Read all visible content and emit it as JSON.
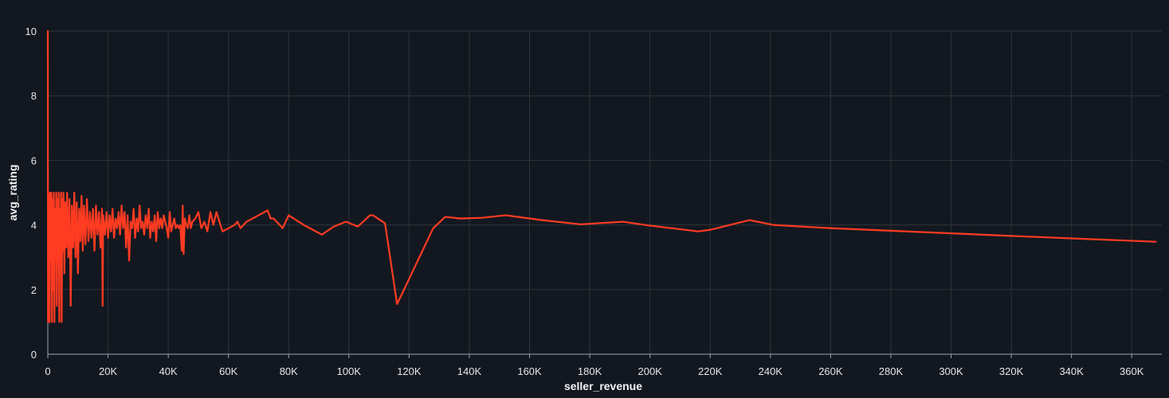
{
  "colors": {
    "background": "#131820",
    "grid": "#2e3338",
    "axis": "#9aa3ab",
    "text": "#e6e6e6",
    "series": "#ff3b22"
  },
  "chart_data": {
    "type": "line",
    "xlabel": "seller_revenue",
    "ylabel": "avg_rating",
    "xlim": [
      0,
      370000
    ],
    "ylim": [
      0,
      10
    ],
    "grid": true,
    "x_ticks": [
      0,
      20000,
      40000,
      60000,
      80000,
      100000,
      120000,
      140000,
      160000,
      180000,
      200000,
      220000,
      240000,
      260000,
      280000,
      300000,
      320000,
      340000,
      360000
    ],
    "x_tick_labels": [
      "0",
      "20K",
      "40K",
      "60K",
      "80K",
      "100K",
      "120K",
      "140K",
      "160K",
      "180K",
      "200K",
      "220K",
      "240K",
      "260K",
      "280K",
      "300K",
      "320K",
      "340K",
      "360K"
    ],
    "y_ticks": [
      0,
      2,
      4,
      6,
      8,
      10
    ],
    "y_tick_labels": [
      "0",
      "2",
      "4",
      "6",
      "8",
      "10"
    ],
    "series": [
      {
        "points": [
          [
            0,
            10
          ],
          [
            60,
            1
          ],
          [
            180,
            5
          ],
          [
            300,
            1
          ],
          [
            450,
            4.9
          ],
          [
            600,
            1
          ],
          [
            800,
            5
          ],
          [
            1000,
            2.9
          ],
          [
            1200,
            5
          ],
          [
            1400,
            1
          ],
          [
            1600,
            4.8
          ],
          [
            1800,
            2
          ],
          [
            2000,
            5
          ],
          [
            2200,
            1
          ],
          [
            2400,
            4.5
          ],
          [
            2600,
            3
          ],
          [
            2800,
            5
          ],
          [
            3000,
            1.5
          ],
          [
            3200,
            4.8
          ],
          [
            3400,
            2.8
          ],
          [
            3600,
            5
          ],
          [
            3800,
            1
          ],
          [
            4000,
            4.5
          ],
          [
            4200,
            3.5
          ],
          [
            4400,
            5
          ],
          [
            4600,
            1
          ],
          [
            4800,
            4.8
          ],
          [
            5000,
            3.2
          ],
          [
            5200,
            5
          ],
          [
            5500,
            2.5
          ],
          [
            5800,
            4.7
          ],
          [
            6100,
            3.3
          ],
          [
            6400,
            5
          ],
          [
            6800,
            3
          ],
          [
            7200,
            4.8
          ],
          [
            7600,
            1.5
          ],
          [
            8000,
            4.6
          ],
          [
            8400,
            3.3
          ],
          [
            8800,
            5
          ],
          [
            9200,
            3
          ],
          [
            9600,
            4.7
          ],
          [
            10000,
            2.5
          ],
          [
            10400,
            4.5
          ],
          [
            10800,
            3.5
          ],
          [
            11200,
            4.9
          ],
          [
            11600,
            3.2
          ],
          [
            12000,
            4.6
          ],
          [
            12500,
            3.4
          ],
          [
            13000,
            4.8
          ],
          [
            13500,
            3.5
          ],
          [
            14000,
            4.4
          ],
          [
            14500,
            3.6
          ],
          [
            15000,
            4.5
          ],
          [
            15500,
            3.2
          ],
          [
            16000,
            4.6
          ],
          [
            16500,
            3.7
          ],
          [
            17000,
            4.4
          ],
          [
            17500,
            3.3
          ],
          [
            18000,
            4.5
          ],
          [
            18200,
            1.5
          ],
          [
            18400,
            4.3
          ],
          [
            19000,
            3.7
          ],
          [
            19500,
            4.4
          ],
          [
            20000,
            3.6
          ],
          [
            20500,
            4.3
          ],
          [
            21000,
            3.8
          ],
          [
            21500,
            4.5
          ],
          [
            22000,
            3.6
          ],
          [
            22500,
            4.2
          ],
          [
            23000,
            3.9
          ],
          [
            23500,
            4.4
          ],
          [
            24000,
            3.7
          ],
          [
            24500,
            4.6
          ],
          [
            25000,
            3.9
          ],
          [
            25500,
            4.4
          ],
          [
            26000,
            3.3
          ],
          [
            26500,
            4.3
          ],
          [
            27000,
            2.9
          ],
          [
            27500,
            4.1
          ],
          [
            28000,
            3.9
          ],
          [
            28500,
            4.5
          ],
          [
            29000,
            3.6
          ],
          [
            29500,
            4.2
          ],
          [
            30000,
            3.8
          ],
          [
            30500,
            4.6
          ],
          [
            31000,
            3.9
          ],
          [
            31500,
            4.1
          ],
          [
            32000,
            3.7
          ],
          [
            32500,
            4.3
          ],
          [
            33000,
            3.9
          ],
          [
            33500,
            4.5
          ],
          [
            34000,
            3.6
          ],
          [
            34500,
            4.1
          ],
          [
            35000,
            3.8
          ],
          [
            35500,
            4.3
          ],
          [
            36000,
            3.5
          ],
          [
            36500,
            4.4
          ],
          [
            37000,
            3.9
          ],
          [
            37500,
            4.2
          ],
          [
            38000,
            3.9
          ],
          [
            38500,
            4.3
          ],
          [
            39000,
            4.1
          ],
          [
            39500,
            3.9
          ],
          [
            40000,
            3.6
          ],
          [
            40500,
            4.4
          ],
          [
            41000,
            3.8
          ],
          [
            41500,
            4
          ],
          [
            42000,
            4.2
          ],
          [
            42500,
            3.9
          ],
          [
            43000,
            4
          ],
          [
            43500,
            3.9
          ],
          [
            44000,
            4
          ],
          [
            44500,
            3.2
          ],
          [
            44800,
            4.6
          ],
          [
            45100,
            3.1
          ],
          [
            45500,
            4.2
          ],
          [
            46000,
            4
          ],
          [
            46500,
            3.9
          ],
          [
            47000,
            4.3
          ],
          [
            47500,
            3.9
          ],
          [
            48000,
            4.1
          ],
          [
            49000,
            4.2
          ],
          [
            50000,
            4.4
          ],
          [
            51000,
            3.9
          ],
          [
            52000,
            4.1
          ],
          [
            53000,
            3.8
          ],
          [
            54000,
            4.4
          ],
          [
            55000,
            4
          ],
          [
            56000,
            4.4
          ],
          [
            57000,
            4.1
          ],
          [
            58000,
            3.8
          ],
          [
            60000,
            3.9
          ],
          [
            62000,
            4
          ],
          [
            63000,
            4.1
          ],
          [
            64000,
            3.9
          ],
          [
            66000,
            4.1
          ],
          [
            68000,
            4.2
          ],
          [
            70000,
            4.3
          ],
          [
            72000,
            4.4
          ],
          [
            73000,
            4.45
          ],
          [
            74000,
            4.2
          ],
          [
            75000,
            4.2
          ],
          [
            76000,
            4.1
          ],
          [
            78000,
            3.9
          ],
          [
            80000,
            4.3
          ],
          [
            85000,
            4
          ],
          [
            91000,
            3.7
          ],
          [
            95000,
            3.95
          ],
          [
            99000,
            4.1
          ],
          [
            103000,
            3.95
          ],
          [
            107000,
            4.3
          ],
          [
            108000,
            4.3
          ],
          [
            112000,
            4.05
          ],
          [
            116000,
            1.55
          ],
          [
            128000,
            3.9
          ],
          [
            132000,
            4.25
          ],
          [
            137000,
            4.2
          ],
          [
            144000,
            4.22
          ],
          [
            152000,
            4.3
          ],
          [
            164000,
            4.15
          ],
          [
            177000,
            4.02
          ],
          [
            191000,
            4.1
          ],
          [
            200000,
            3.98
          ],
          [
            216000,
            3.8
          ],
          [
            220000,
            3.85
          ],
          [
            233000,
            4.15
          ],
          [
            241000,
            4.0
          ],
          [
            260000,
            3.9
          ],
          [
            290000,
            3.78
          ],
          [
            320000,
            3.66
          ],
          [
            368000,
            3.48
          ]
        ]
      }
    ]
  }
}
